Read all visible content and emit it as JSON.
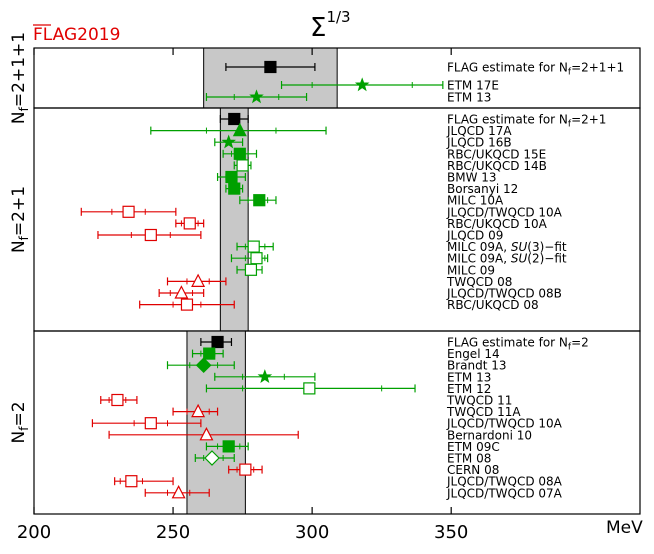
{
  "chart_data": {
    "type": "scatter",
    "title": "Σ",
    "title_superscript": "1/3",
    "watermark": "FLAG2019",
    "xunit": "MeV",
    "xlim": [
      200,
      360
    ],
    "xticks": [
      200,
      250,
      300,
      350
    ],
    "colors": {
      "flag": "#000000",
      "green": "#00a000",
      "red": "#e00000",
      "band": "#c8c8c8"
    },
    "groups": [
      {
        "label": "N_f=2+1+1",
        "label_main": "N",
        "label_sub": "f",
        "label_tail": "=2+1+1",
        "band": [
          261,
          309
        ],
        "entries": [
          {
            "label": "FLAG estimate for N_f=2+1+1",
            "value": 285,
            "err": [
              269,
              301
            ],
            "marker": "square",
            "color": "flag",
            "filled": true
          },
          {
            "label": "ETM 17E",
            "value": 318,
            "err": [
              289,
              347
            ],
            "err_stat": [
              300,
              336
            ],
            "marker": "star",
            "color": "green",
            "filled": true
          },
          {
            "label": "ETM 13",
            "value": 280,
            "err": [
              262,
              298
            ],
            "err_stat": [
              272,
              288
            ],
            "marker": "star",
            "color": "green",
            "filled": true
          }
        ]
      },
      {
        "label": "N_f=2+1",
        "label_main": "N",
        "label_sub": "f",
        "label_tail": "=2+1",
        "band": [
          267,
          277
        ],
        "entries": [
          {
            "label": "FLAG estimate for N_f=2+1",
            "value": 272,
            "err": [
              267,
              277
            ],
            "marker": "square",
            "color": "flag",
            "filled": true
          },
          {
            "label": "JLQCD 17A",
            "value": 274,
            "err": [
              242,
              305
            ],
            "err_stat": [
              262,
              287
            ],
            "marker": "triangle",
            "color": "green",
            "filled": true
          },
          {
            "label": "JLQCD 16B",
            "value": 270,
            "err": [
              265,
              275
            ],
            "marker": "star",
            "color": "green",
            "filled": true
          },
          {
            "label": "RBC/UKQCD 15E",
            "value": 274,
            "err": [
              268,
              280
            ],
            "err_stat": [
              271,
              277
            ],
            "marker": "square",
            "color": "green",
            "filled": true
          },
          {
            "label": "RBC/UKQCD 14B",
            "value": 275,
            "err": [
              272,
              278
            ],
            "marker": "square",
            "color": "green",
            "filled": false
          },
          {
            "label": "BMW 13",
            "value": 271,
            "err": [
              266,
              276
            ],
            "err_stat": [
              269,
              273
            ],
            "marker": "square",
            "color": "green",
            "filled": true
          },
          {
            "label": "Borsanyi 12",
            "value": 272,
            "err": [
              269,
              275
            ],
            "marker": "square",
            "color": "green",
            "filled": true
          },
          {
            "label": "MILC 10A",
            "value": 281,
            "err": [
              274,
              287
            ],
            "err_stat": [
              277,
              284
            ],
            "marker": "square",
            "color": "green",
            "filled": true
          },
          {
            "label": "JLQCD/TWQCD 10A",
            "value": 234,
            "err": [
              217,
              251
            ],
            "err_stat": [
              228,
              240
            ],
            "marker": "square",
            "color": "red",
            "filled": false
          },
          {
            "label": "RBC/UKQCD 10A",
            "value": 256,
            "err": [
              251,
              261
            ],
            "err_stat": [
              253,
              259
            ],
            "marker": "square",
            "color": "red",
            "filled": false
          },
          {
            "label": "JLQCD 09",
            "value": 242,
            "err": [
              223,
              260
            ],
            "err_stat": [
              235,
              249
            ],
            "marker": "square",
            "color": "red",
            "filled": false
          },
          {
            "label": "MILC 09A, SU(3)−fit",
            "label_pre": "MILC 09A, ",
            "label_ital": "SU",
            "label_post": "(3)−fit",
            "value": 279,
            "err": [
              273,
              286
            ],
            "err_stat": [
              276,
              283
            ],
            "marker": "square",
            "color": "green",
            "filled": false
          },
          {
            "label": "MILC 09A, SU(2)−fit",
            "label_pre": "MILC 09A, ",
            "label_ital": "SU",
            "label_post": "(2)−fit",
            "value": 280,
            "err": [
              271,
              284
            ],
            "err_stat": [
              276,
              283
            ],
            "marker": "square",
            "color": "green",
            "filled": false
          },
          {
            "label": "MILC 09",
            "value": 278,
            "err": [
              273,
              282
            ],
            "marker": "square",
            "color": "green",
            "filled": false
          },
          {
            "label": "TWQCD 08",
            "value": 259,
            "err": [
              248,
              269
            ],
            "err_stat": [
              255,
              263
            ],
            "marker": "triangle",
            "color": "red",
            "filled": false
          },
          {
            "label": "JLQCD/TWQCD 08B",
            "value": 253,
            "err": [
              245,
              261
            ],
            "err_stat": [
              249,
              257
            ],
            "marker": "triangle",
            "color": "red",
            "filled": false
          },
          {
            "label": "RBC/UKQCD 08",
            "value": 255,
            "err": [
              238,
              272
            ],
            "err_stat": [
              250,
              260
            ],
            "marker": "square",
            "color": "red",
            "filled": false
          }
        ]
      },
      {
        "label": "N_f=2",
        "label_main": "N",
        "label_sub": "f",
        "label_tail": "=2",
        "band": [
          255,
          276
        ],
        "entries": [
          {
            "label": "FLAG estimate for N_f=2",
            "value": 266,
            "err": [
              260,
              271
            ],
            "marker": "square",
            "color": "flag",
            "filled": true
          },
          {
            "label": "Engel 14",
            "value": 263,
            "err": [
              257,
              268
            ],
            "err_stat": [
              260,
              265
            ],
            "marker": "square",
            "color": "green",
            "filled": true
          },
          {
            "label": "Brandt 13",
            "value": 261,
            "err": [
              248,
              272
            ],
            "err_stat": [
              256,
              266
            ],
            "marker": "diamond",
            "color": "green",
            "filled": true
          },
          {
            "label": "ETM 13",
            "value": 283,
            "err": [
              265,
              301
            ],
            "err_stat": [
              275,
              290
            ],
            "marker": "star",
            "color": "green",
            "filled": true
          },
          {
            "label": "ETM 12",
            "value": 299,
            "err": [
              262,
              337
            ],
            "err_stat": [
              275,
              325
            ],
            "marker": "square",
            "color": "green",
            "filled": false
          },
          {
            "label": "TWQCD 11",
            "value": 230,
            "err": [
              224,
              237
            ],
            "err_stat": [
              227,
              233
            ],
            "marker": "square",
            "color": "red",
            "filled": false
          },
          {
            "label": "TWQCD 11A",
            "value": 259,
            "err": [
              250,
              266
            ],
            "err_stat": [
              255,
              263
            ],
            "marker": "triangle",
            "color": "red",
            "filled": false
          },
          {
            "label": "JLQCD/TWQCD 10A",
            "value": 242,
            "err": [
              221,
              260
            ],
            "err_stat": [
              236,
              248
            ],
            "marker": "square",
            "color": "red",
            "filled": false
          },
          {
            "label": "Bernardoni 10",
            "value": 262,
            "err": [
              227,
              295
            ],
            "marker": "triangle",
            "color": "red",
            "filled": false
          },
          {
            "label": "ETM 09C",
            "value": 270,
            "err": [
              262,
              277
            ],
            "err_stat": [
              266,
              274
            ],
            "marker": "square",
            "color": "green",
            "filled": true
          },
          {
            "label": "ETM 08",
            "value": 264,
            "err": [
              258,
              272
            ],
            "err_stat": [
              261,
              268
            ],
            "marker": "diamond",
            "color": "green",
            "filled": false
          },
          {
            "label": "CERN 08",
            "value": 276,
            "err": [
              270,
              282
            ],
            "err_stat": [
              273,
              279
            ],
            "marker": "square",
            "color": "red",
            "filled": false
          },
          {
            "label": "JLQCD/TWQCD 08A",
            "value": 235,
            "err": [
              229,
              250
            ],
            "err_stat": [
              231,
              239
            ],
            "marker": "square",
            "color": "red",
            "filled": false
          },
          {
            "label": "JLQCD/TWQCD 07A",
            "value": 252,
            "err": [
              240,
              263
            ],
            "err_stat": [
              248,
              256
            ],
            "marker": "triangle",
            "color": "red",
            "filled": false
          }
        ]
      }
    ]
  }
}
